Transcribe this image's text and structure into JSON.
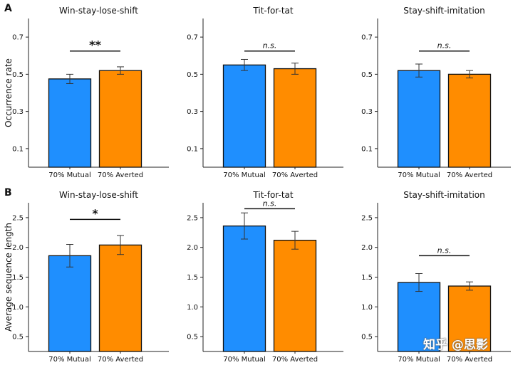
{
  "figure": {
    "colors": {
      "mutual": "#1f8ffe",
      "averted": "#ff8c00",
      "axis": "#222222",
      "text": "#111111"
    },
    "watermark": "知乎 @思影"
  },
  "chart_data": [
    {
      "panel": "A",
      "type": "bar",
      "title": "Win-stay-lose-shift",
      "ylabel": "Occurrence rate",
      "categories": [
        "70% Mutual",
        "70% Averted"
      ],
      "values": [
        0.475,
        0.52
      ],
      "errors": [
        0.025,
        0.02
      ],
      "ylim": [
        0,
        0.8
      ],
      "yticks": [
        0.1,
        0.3,
        0.5,
        0.7
      ],
      "yticklabels": [
        "0.1",
        "0.3",
        "0.5",
        "0.7"
      ],
      "significance": {
        "label": "**",
        "italic": false,
        "y": 0.625
      }
    },
    {
      "panel": "",
      "type": "bar",
      "title": "Tit-for-tat",
      "ylabel": "",
      "categories": [
        "70% Mutual",
        "70% Averted"
      ],
      "values": [
        0.55,
        0.53
      ],
      "errors": [
        0.03,
        0.03
      ],
      "ylim": [
        0,
        0.8
      ],
      "yticks": [
        0.1,
        0.3,
        0.5,
        0.7
      ],
      "yticklabels": [
        "0.1",
        "0.3",
        "0.5",
        "0.7"
      ],
      "significance": {
        "label": "n.s.",
        "italic": true,
        "y": 0.625
      }
    },
    {
      "panel": "",
      "type": "bar",
      "title": "Stay-shift-imitation",
      "ylabel": "",
      "categories": [
        "70% Mutual",
        "70% Averted"
      ],
      "values": [
        0.52,
        0.5
      ],
      "errors": [
        0.035,
        0.02
      ],
      "ylim": [
        0,
        0.8
      ],
      "yticks": [
        0.1,
        0.3,
        0.5,
        0.7
      ],
      "yticklabels": [
        "0.1",
        "0.3",
        "0.5",
        "0.7"
      ],
      "significance": {
        "label": "n.s.",
        "italic": true,
        "y": 0.625
      }
    },
    {
      "panel": "B",
      "type": "bar",
      "title": "Win-stay-lose-shift",
      "ylabel": "Average sequence length",
      "categories": [
        "70% Mutual",
        "70% Averted"
      ],
      "values": [
        1.86,
        2.04
      ],
      "errors": [
        0.19,
        0.16
      ],
      "ylim": [
        0.25,
        2.75
      ],
      "yticks": [
        0.5,
        1.0,
        1.5,
        2.0,
        2.5
      ],
      "yticklabels": [
        "0.5",
        "1.0",
        "1.5",
        "2.0",
        "2.5"
      ],
      "significance": {
        "label": "*",
        "italic": false,
        "y": 2.47
      }
    },
    {
      "panel": "",
      "type": "bar",
      "title": "Tit-for-tat",
      "ylabel": "",
      "categories": [
        "70% Mutual",
        "70% Averted"
      ],
      "values": [
        2.36,
        2.12
      ],
      "errors": [
        0.22,
        0.15
      ],
      "ylim": [
        0.25,
        2.75
      ],
      "yticks": [
        0.5,
        1.0,
        1.5,
        2.0,
        2.5
      ],
      "yticklabels": [
        "0.5",
        "1.0",
        "1.5",
        "2.0",
        "2.5"
      ],
      "significance": {
        "label": "n.s.",
        "italic": true,
        "y": 2.65
      }
    },
    {
      "panel": "",
      "type": "bar",
      "title": "Stay-shift-imitation",
      "ylabel": "",
      "categories": [
        "70% Mutual",
        "70% Averted"
      ],
      "values": [
        1.41,
        1.35
      ],
      "errors": [
        0.15,
        0.07
      ],
      "ylim": [
        0.25,
        2.75
      ],
      "yticks": [
        0.5,
        1.0,
        1.5,
        2.0,
        2.5
      ],
      "yticklabels": [
        "0.5",
        "1.0",
        "1.5",
        "2.0",
        "2.5"
      ],
      "significance": {
        "label": "n.s.",
        "italic": true,
        "y": 1.86
      }
    }
  ]
}
